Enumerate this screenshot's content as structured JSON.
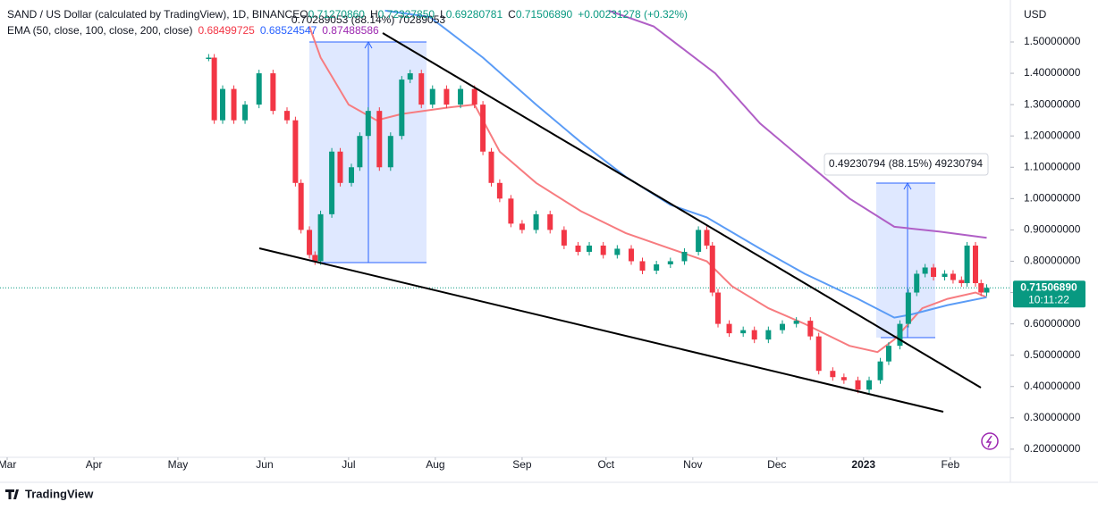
{
  "header": {
    "title": "SAND / US Dollar (calculated by TradingView), 1D, BINANCE",
    "ohlc": [
      {
        "key": "O",
        "value": "0.71270860"
      },
      {
        "key": "H",
        "value": "0.72327850"
      },
      {
        "key": "L",
        "value": "0.69280781"
      },
      {
        "key": "C",
        "value": "0.71506890"
      }
    ],
    "change": "+0.00231278 (+0.32%)",
    "indicator": "EMA (50, close, 100, close, 200, close)",
    "indicator_values": [
      "0.68499725",
      "0.68524547",
      "0.87488586"
    ]
  },
  "currency": "USD",
  "countdown": "10:11:22",
  "brand": "TradingView",
  "annotations": [
    "0.70289053 (88.14%) 70289053",
    "0.49230794 (88.15%) 49230794"
  ],
  "chart_data": {
    "type": "candlestick",
    "x": [
      72,
      74,
      77,
      81,
      85,
      90,
      95,
      100,
      103,
      105,
      108,
      110,
      112,
      116,
      119,
      123,
      126,
      129,
      133,
      137,
      141,
      144,
      148,
      152,
      157,
      162,
      167,
      170,
      173,
      176,
      180,
      184,
      189,
      194,
      199,
      204,
      208,
      213,
      218,
      223,
      227,
      232,
      237,
      242,
      247,
      250,
      252,
      254,
      258,
      263,
      267,
      272,
      277,
      282,
      287,
      290,
      295,
      299,
      304,
      308,
      312,
      315,
      319,
      322,
      325,
      328,
      331,
      335,
      338,
      341,
      343,
      346,
      348,
      350
    ],
    "values": [
      1.45,
      1.25,
      1.35,
      1.25,
      1.3,
      1.4,
      1.28,
      1.25,
      1.05,
      0.9,
      0.82,
      0.8,
      0.95,
      1.15,
      1.05,
      1.1,
      1.2,
      1.28,
      1.1,
      1.2,
      1.38,
      1.4,
      1.3,
      1.35,
      1.3,
      1.35,
      1.3,
      1.15,
      1.05,
      1.0,
      0.92,
      0.9,
      0.95,
      0.9,
      0.85,
      0.83,
      0.85,
      0.82,
      0.84,
      0.8,
      0.77,
      0.79,
      0.8,
      0.83,
      0.9,
      0.85,
      0.7,
      0.6,
      0.57,
      0.58,
      0.55,
      0.58,
      0.6,
      0.61,
      0.56,
      0.45,
      0.43,
      0.42,
      0.39,
      0.42,
      0.48,
      0.53,
      0.6,
      0.7,
      0.76,
      0.78,
      0.75,
      0.76,
      0.74,
      0.73,
      0.85,
      0.73,
      0.7,
      0.715
    ],
    "color_up": "#089981",
    "color_down": "#f23645",
    "series": [
      {
        "color": "#f77c80",
        "x": [
          108,
          112,
          122,
          132,
          141,
          157,
          167,
          176,
          189,
          205,
          221,
          237,
          250,
          259,
          272,
          285,
          301,
          311,
          317,
          327,
          336,
          346,
          350
        ],
        "values": [
          1.55,
          1.45,
          1.3,
          1.25,
          1.27,
          1.29,
          1.3,
          1.15,
          1.05,
          0.96,
          0.89,
          0.84,
          0.8,
          0.72,
          0.65,
          0.6,
          0.53,
          0.51,
          0.55,
          0.65,
          0.68,
          0.7,
          0.685
        ]
      },
      {
        "color": "#5b9cf6",
        "x": [
          135,
          151,
          170,
          189,
          205,
          221,
          237,
          250,
          269,
          285,
          304,
          317,
          323,
          336,
          350
        ],
        "values": [
          1.6,
          1.58,
          1.45,
          1.3,
          1.18,
          1.07,
          0.98,
          0.94,
          0.84,
          0.76,
          0.68,
          0.62,
          0.63,
          0.66,
          0.685
        ]
      },
      {
        "color": "#b05fc6",
        "x": [
          215,
          231,
          253,
          269,
          285,
          301,
          317,
          333,
          350
        ],
        "values": [
          1.6,
          1.55,
          1.4,
          1.24,
          1.12,
          1.0,
          0.91,
          0.895,
          0.875
        ]
      }
    ],
    "last_price": 0.7150689,
    "last_price_label": "0.71506890",
    "xlim": [
      -2.56,
      358.47
    ],
    "xticks": [
      {
        "value": 0,
        "label": "Mar"
      },
      {
        "value": 31,
        "label": "Apr"
      },
      {
        "value": 61,
        "label": "May"
      },
      {
        "value": 92,
        "label": "Jun"
      },
      {
        "value": 122,
        "label": "Jul"
      },
      {
        "value": 153,
        "label": "Aug"
      },
      {
        "value": 184,
        "label": "Sep"
      },
      {
        "value": 214,
        "label": "Oct"
      },
      {
        "value": 245,
        "label": "Nov"
      },
      {
        "value": 275,
        "label": "Dec"
      },
      {
        "value": 306,
        "label": "2023"
      },
      {
        "value": 337,
        "label": "Feb"
      }
    ],
    "ylim": [
      0.174,
      1.634
    ],
    "yticks": [
      {
        "value": 0.2,
        "label": "0.20000000"
      },
      {
        "value": 0.3,
        "label": "0.30000000"
      },
      {
        "value": 0.4,
        "label": "0.40000000"
      },
      {
        "value": 0.5,
        "label": "0.50000000"
      },
      {
        "value": 0.6,
        "label": "0.60000000"
      },
      {
        "value": 0.7,
        "label": "0.70000000"
      },
      {
        "value": 0.8,
        "label": "0.80000000"
      },
      {
        "value": 0.9,
        "label": "0.90000000"
      },
      {
        "value": 1.0,
        "label": "1.00000000"
      },
      {
        "value": 1.1,
        "label": "1.10000000"
      },
      {
        "value": 1.2,
        "label": "1.20000000"
      },
      {
        "value": 1.3,
        "label": "1.30000000"
      },
      {
        "value": 1.4,
        "label": "1.40000000"
      },
      {
        "value": 1.5,
        "label": "1.50000000"
      }
    ]
  }
}
